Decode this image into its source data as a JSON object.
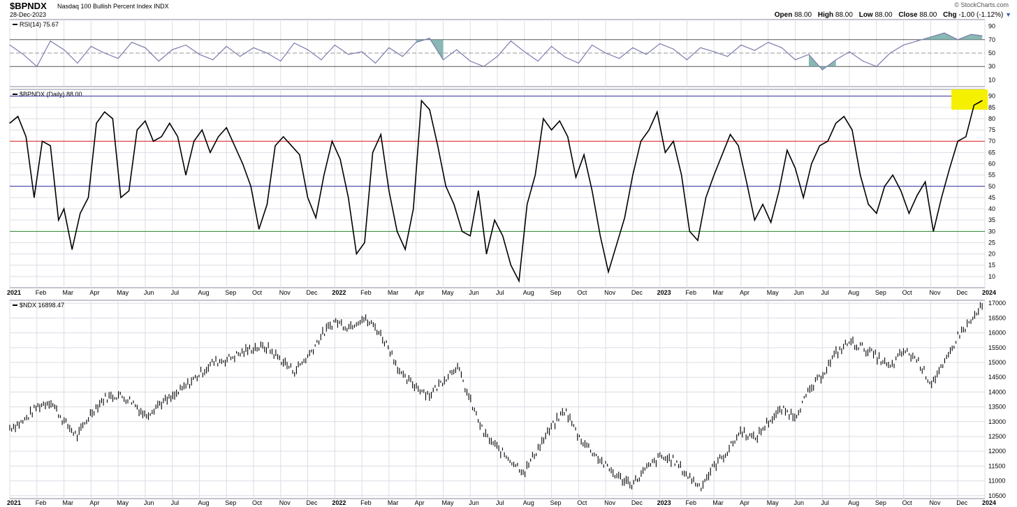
{
  "header": {
    "symbol": "$BPNDX",
    "description": "Nasdaq 100 Bullish Percent Index  INDX",
    "date": "28-Dec-2023",
    "brand": "© StockCharts.com",
    "open_label": "Open",
    "open_value": "88.00",
    "high_label": "High",
    "high_value": "88.00",
    "low_label": "Low",
    "low_value": "88.00",
    "close_label": "Close",
    "close_value": "88.00",
    "chg_label": "Chg",
    "chg_value": "-1.00 (-1.12%)",
    "chg_arrow": "▼"
  },
  "colors": {
    "grid": "#dcdce6",
    "frame": "#8a8aa0",
    "rsi_line": "#7b7bad",
    "rsi_fill": "#6aa6a0",
    "line_70": "#e02020",
    "line_50": "#3030a0",
    "line_30": "#2e8b2e",
    "highlight": "#f5f000",
    "price": "#000000"
  },
  "chart_data": [
    {
      "type": "line",
      "panel": "rsi",
      "title": "RSI(14) 75.67",
      "y_ticks": [
        10,
        30,
        50,
        70,
        90
      ],
      "ylim": [
        0,
        100
      ],
      "reference_lines": [
        30,
        50,
        70
      ],
      "overbought": 70,
      "oversold": 30,
      "x_months": [
        "2021",
        "Feb",
        "Mar",
        "Apr",
        "May",
        "Jun",
        "Jul",
        "Aug",
        "Sep",
        "Oct",
        "Nov",
        "Dec",
        "2022",
        "Feb",
        "Mar",
        "Apr",
        "May",
        "Jun",
        "Jul",
        "Aug",
        "Sep",
        "Oct",
        "Nov",
        "Dec",
        "2023",
        "Feb",
        "Mar",
        "Apr",
        "May",
        "Jun",
        "Jul",
        "Aug",
        "Sep",
        "Oct",
        "Nov",
        "Dec",
        "2024"
      ],
      "x": [
        0,
        0.5,
        1,
        1.5,
        2,
        2.5,
        3,
        3.5,
        4,
        4.5,
        5,
        5.5,
        6,
        6.5,
        7,
        7.5,
        8,
        8.5,
        9,
        9.5,
        10,
        10.5,
        11,
        11.5,
        12,
        12.5,
        13,
        13.5,
        14,
        14.5,
        15,
        15.5,
        16,
        16.5,
        17,
        17.5,
        18,
        18.5,
        19,
        19.5,
        20,
        20.5,
        21,
        21.5,
        22,
        22.5,
        23,
        23.5,
        24,
        24.5,
        25,
        25.5,
        26,
        26.5,
        27,
        27.5,
        28,
        28.5,
        29,
        29.5,
        30,
        30.5,
        31,
        31.5,
        32,
        32.5,
        33,
        33.5,
        34,
        34.5,
        35,
        35.5,
        35.9
      ],
      "values": [
        62,
        48,
        30,
        68,
        55,
        35,
        60,
        50,
        42,
        66,
        58,
        38,
        55,
        62,
        48,
        40,
        60,
        45,
        58,
        50,
        38,
        65,
        55,
        40,
        62,
        48,
        52,
        35,
        58,
        45,
        66,
        72,
        40,
        55,
        38,
        30,
        45,
        68,
        52,
        38,
        60,
        44,
        35,
        62,
        50,
        42,
        58,
        48,
        64,
        56,
        40,
        58,
        52,
        45,
        62,
        54,
        66,
        58,
        40,
        48,
        25,
        40,
        52,
        38,
        30,
        50,
        62,
        68,
        74,
        80,
        70,
        78,
        75.67
      ]
    },
    {
      "type": "line",
      "panel": "bullish_percent",
      "title": "$BPNDX (Daily) 88.00",
      "y_ticks": [
        10,
        15,
        20,
        25,
        30,
        35,
        40,
        45,
        50,
        55,
        60,
        65,
        70,
        75,
        80,
        85,
        90
      ],
      "ylim": [
        5,
        93
      ],
      "reference_lines": [
        30,
        50,
        70,
        90
      ],
      "x_months": [
        "2021",
        "Feb",
        "Mar",
        "Apr",
        "May",
        "Jun",
        "Jul",
        "Aug",
        "Sep",
        "Oct",
        "Nov",
        "Dec",
        "2022",
        "Feb",
        "Mar",
        "Apr",
        "May",
        "Jun",
        "Jul",
        "Aug",
        "Sep",
        "Oct",
        "Nov",
        "Dec",
        "2023",
        "Feb",
        "Mar",
        "Apr",
        "May",
        "Jun",
        "Jul",
        "Aug",
        "Sep",
        "Oct",
        "Nov",
        "Dec",
        "2024"
      ],
      "x": [
        0,
        0.3,
        0.6,
        0.9,
        1.2,
        1.5,
        1.8,
        2.0,
        2.3,
        2.6,
        2.9,
        3.2,
        3.5,
        3.8,
        4.1,
        4.4,
        4.7,
        5.0,
        5.3,
        5.6,
        5.9,
        6.2,
        6.5,
        6.8,
        7.1,
        7.4,
        7.7,
        8.0,
        8.3,
        8.6,
        8.9,
        9.2,
        9.5,
        9.8,
        10.1,
        10.4,
        10.7,
        11.0,
        11.3,
        11.6,
        11.9,
        12.2,
        12.5,
        12.8,
        13.1,
        13.4,
        13.7,
        14.0,
        14.3,
        14.6,
        14.9,
        15.2,
        15.5,
        15.8,
        16.1,
        16.4,
        16.7,
        17.0,
        17.3,
        17.6,
        17.9,
        18.2,
        18.5,
        18.8,
        19.1,
        19.4,
        19.7,
        20.0,
        20.3,
        20.6,
        20.9,
        21.2,
        21.5,
        21.8,
        22.1,
        22.4,
        22.7,
        23.0,
        23.3,
        23.6,
        23.9,
        24.2,
        24.5,
        24.8,
        25.1,
        25.4,
        25.7,
        26.0,
        26.3,
        26.6,
        26.9,
        27.2,
        27.5,
        27.8,
        28.1,
        28.4,
        28.7,
        29.0,
        29.3,
        29.6,
        29.9,
        30.2,
        30.5,
        30.8,
        31.1,
        31.4,
        31.7,
        32.0,
        32.3,
        32.6,
        32.9,
        33.2,
        33.5,
        33.8,
        34.1,
        34.4,
        34.7,
        35.0,
        35.3,
        35.6,
        35.9
      ],
      "values": [
        78,
        81,
        72,
        45,
        70,
        68,
        35,
        40,
        22,
        38,
        45,
        78,
        83,
        80,
        45,
        48,
        75,
        79,
        70,
        72,
        78,
        72,
        55,
        70,
        75,
        65,
        72,
        76,
        68,
        60,
        50,
        31,
        42,
        68,
        72,
        68,
        64,
        45,
        36,
        55,
        70,
        62,
        45,
        20,
        25,
        65,
        73,
        48,
        30,
        22,
        40,
        88,
        84,
        68,
        50,
        42,
        30,
        28,
        48,
        20,
        35,
        28,
        15,
        8,
        42,
        55,
        80,
        75,
        79,
        72,
        54,
        64,
        48,
        28,
        12,
        24,
        36,
        55,
        70,
        75,
        83,
        65,
        70,
        55,
        30,
        26,
        45,
        55,
        64,
        73,
        68,
        52,
        35,
        42,
        34,
        48,
        66,
        58,
        45,
        60,
        68,
        70,
        78,
        81,
        75,
        55,
        42,
        38,
        50,
        55,
        48,
        38,
        46,
        52,
        30,
        45,
        58,
        70,
        72,
        86,
        88
      ]
    },
    {
      "type": "bar",
      "panel": "price",
      "title": "$NDX 16898.47",
      "y_ticks": [
        10500,
        11000,
        11500,
        12000,
        12500,
        13000,
        13500,
        14000,
        14500,
        15000,
        15500,
        16000,
        16500,
        17000
      ],
      "ylim": [
        10400,
        17100
      ],
      "x_months": [
        "2021",
        "Feb",
        "Mar",
        "Apr",
        "May",
        "Jun",
        "Jul",
        "Aug",
        "Sep",
        "Oct",
        "Nov",
        "Dec",
        "2022",
        "Feb",
        "Mar",
        "Apr",
        "May",
        "Jun",
        "Jul",
        "Aug",
        "Sep",
        "Oct",
        "Nov",
        "Dec",
        "2023",
        "Feb",
        "Mar",
        "Apr",
        "May",
        "Jun",
        "Jul",
        "Aug",
        "Sep",
        "Oct",
        "Nov",
        "Dec",
        "2024"
      ],
      "x": [
        0,
        0.5,
        1,
        1.5,
        2,
        2.5,
        3,
        3.5,
        4,
        4.5,
        5,
        5.5,
        6,
        6.5,
        7,
        7.5,
        8,
        8.5,
        9,
        9.5,
        10,
        10.5,
        11,
        11.5,
        12,
        12.5,
        13,
        13.5,
        14,
        14.5,
        15,
        15.5,
        16,
        16.5,
        17,
        17.5,
        18,
        18.5,
        19,
        19.5,
        20,
        20.5,
        21,
        21.5,
        22,
        22.5,
        23,
        23.5,
        24,
        24.5,
        25,
        25.5,
        26,
        26.5,
        27,
        27.5,
        28,
        28.5,
        29,
        29.5,
        30,
        30.5,
        31,
        31.5,
        32,
        32.5,
        33,
        33.5,
        34,
        34.5,
        35,
        35.5,
        35.9
      ],
      "values": [
        12800,
        13000,
        13500,
        13700,
        13000,
        12500,
        13300,
        13800,
        13900,
        13700,
        13200,
        13600,
        13800,
        14200,
        14600,
        15000,
        15100,
        15300,
        15500,
        15500,
        15100,
        14700,
        15200,
        15900,
        16400,
        16200,
        16500,
        16200,
        15500,
        14500,
        14200,
        13900,
        14400,
        14900,
        13700,
        12600,
        12100,
        11700,
        11300,
        12100,
        12800,
        13400,
        12500,
        12000,
        11500,
        11100,
        10900,
        11400,
        11800,
        11700,
        11200,
        10800,
        11500,
        12000,
        12700,
        12400,
        13000,
        13400,
        13200,
        14000,
        14600,
        15300,
        15700,
        15500,
        15200,
        14800,
        15400,
        15100,
        14300,
        14900,
        15900,
        16400,
        16898
      ]
    }
  ],
  "x_axis_labels": [
    "2021",
    "Feb",
    "Mar",
    "Apr",
    "May",
    "Jun",
    "Jul",
    "Aug",
    "Sep",
    "Oct",
    "Nov",
    "Dec",
    "2022",
    "Feb",
    "Mar",
    "Apr",
    "May",
    "Jun",
    "Jul",
    "Aug",
    "Sep",
    "Oct",
    "Nov",
    "Dec",
    "2023",
    "Feb",
    "Mar",
    "Apr",
    "May",
    "Jun",
    "Jul",
    "Aug",
    "Sep",
    "Oct",
    "Nov",
    "Dec",
    "2024"
  ]
}
